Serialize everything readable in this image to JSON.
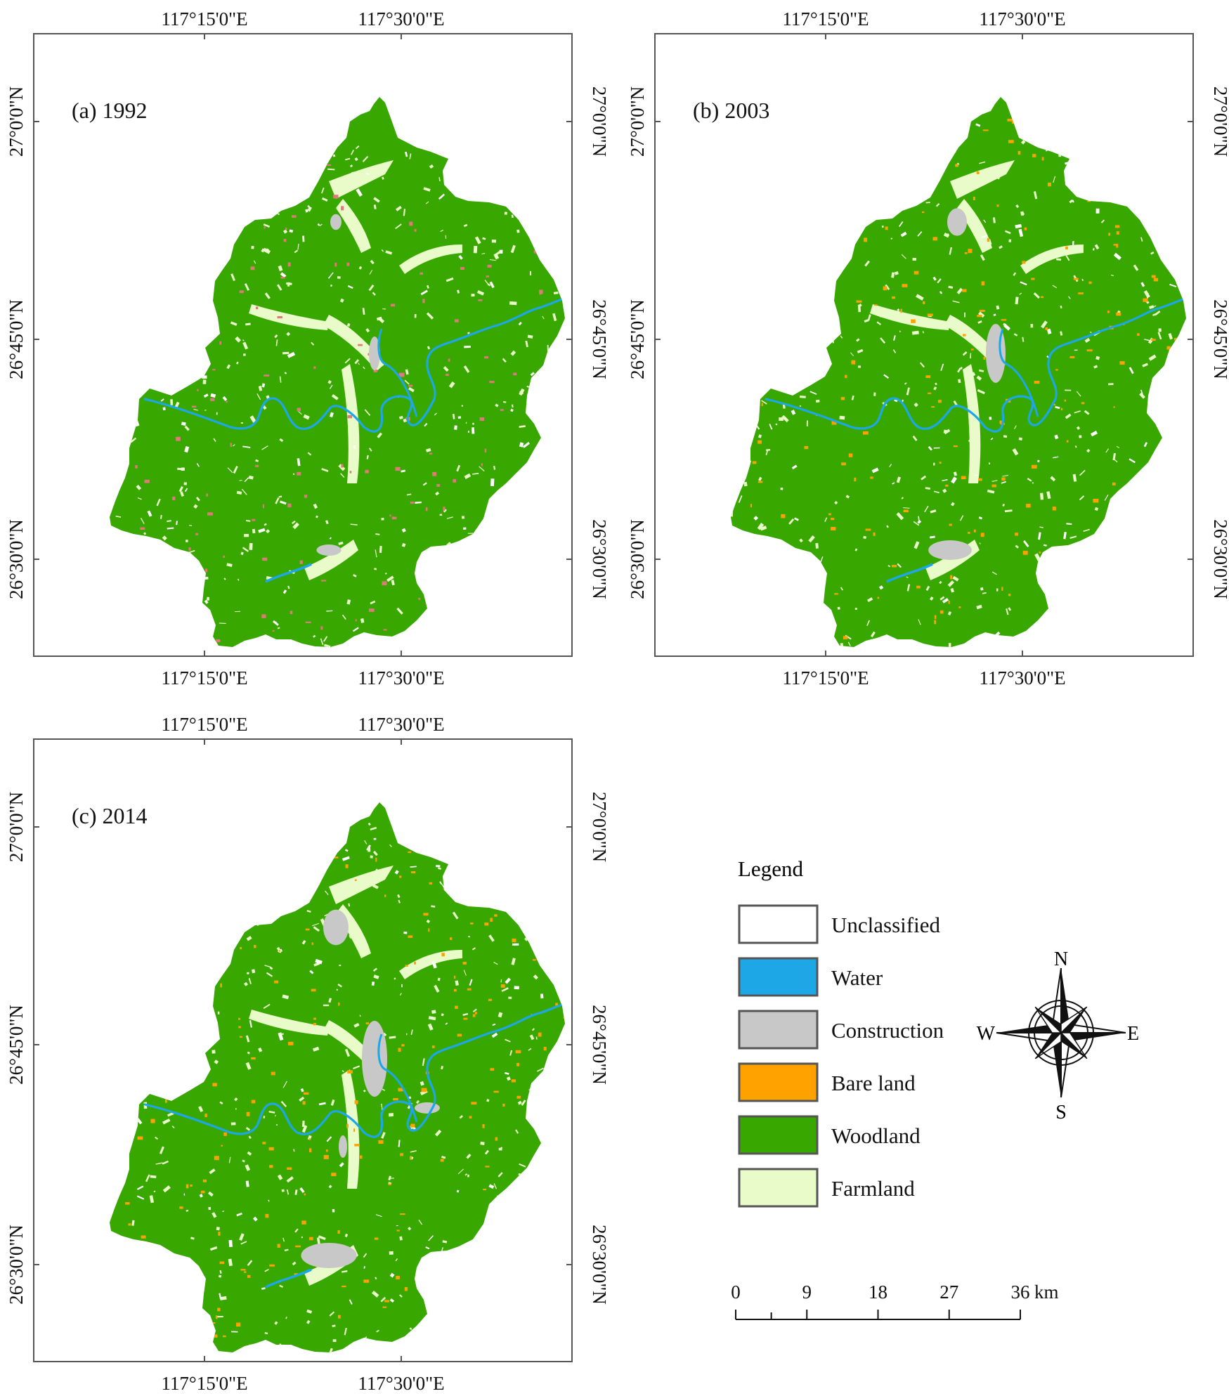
{
  "colors": {
    "unclassified": "#ffffff",
    "water": "#1ea7e6",
    "construction": "#c8c8c8",
    "bare_land": "#ffa200",
    "woodland": "#38a800",
    "farmland": "#e9fbc8",
    "frame": "#555555",
    "text": "#111111",
    "field_1992": "#e07a7a"
  },
  "coordinates": {
    "lon_labels": [
      "117°15'0\"E",
      "117°30'0\"E"
    ],
    "lat_labels": [
      "27°0'0\"N",
      "26°45'0\"N",
      "26°30'0\"N"
    ]
  },
  "panels": [
    {
      "label": "(a) 1992"
    },
    {
      "label": "(b) 2003"
    },
    {
      "label": "(c) 2014"
    }
  ],
  "legend": {
    "title": "Legend",
    "items": [
      {
        "label": "Unclassified",
        "color": "#ffffff"
      },
      {
        "label": "Water",
        "color": "#1ea7e6"
      },
      {
        "label": "Construction",
        "color": "#c8c8c8"
      },
      {
        "label": "Bare land",
        "color": "#ffa200"
      },
      {
        "label": "Woodland",
        "color": "#38a800"
      },
      {
        "label": "Farmland",
        "color": "#e9fbc8"
      }
    ]
  },
  "north_arrow": {
    "n": "N",
    "s": "S",
    "e": "E",
    "w": "W"
  },
  "scale_bar": {
    "ticks": [
      "0",
      "9",
      "18",
      "27",
      "36"
    ],
    "unit": "km"
  }
}
